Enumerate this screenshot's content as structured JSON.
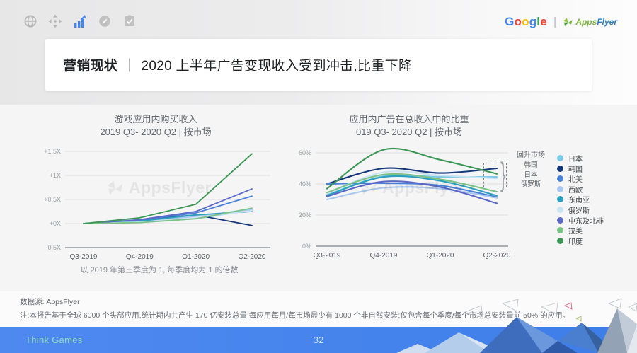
{
  "toolbar": {
    "icons": [
      {
        "name": "globe-icon",
        "active": false
      },
      {
        "name": "move-icon",
        "active": false
      },
      {
        "name": "bar-chart-icon",
        "active": true
      },
      {
        "name": "compass-icon",
        "active": false
      },
      {
        "name": "tasks-icon",
        "active": false
      }
    ],
    "accent_color": "#4285f4",
    "inactive_color": "#b7b7b7"
  },
  "logos": {
    "google": "Google",
    "google_colors": [
      "#4285F4",
      "#EA4335",
      "#FBBC05",
      "#4285F4",
      "#34A853",
      "#EA4335"
    ],
    "divider": "|",
    "appsflyer_apps": "Apps",
    "appsflyer_flyer": "Flyer"
  },
  "header": {
    "title_prefix": "营销现状",
    "title_separator": "｜",
    "title_rest": "2020 上半年广告变现收入受到冲击,比重下降"
  },
  "watermark": "AppsFlyer",
  "chart_data": [
    {
      "id": "iap-revenue-chart",
      "type": "line",
      "title": "游戏应用内购买收入",
      "subtitle": "2019 Q3- 2020 Q2 | 按市场",
      "categories": [
        "Q3-2019",
        "Q4-2019",
        "Q1-2020",
        "Q2-2020"
      ],
      "yticks": [
        {
          "v": 1.5,
          "label": "+1.5X"
        },
        {
          "v": 1.0,
          "label": "+1X"
        },
        {
          "v": 0.5,
          "label": "+0.5X"
        },
        {
          "v": 0.0,
          "label": "+0X"
        },
        {
          "v": -0.5,
          "label": "-0.5X"
        }
      ],
      "ylim": [
        -0.5,
        1.5
      ],
      "smooth": false,
      "grid": true,
      "series": [
        {
          "name": "日本",
          "color": "#7ec9e5",
          "values": [
            0,
            0.02,
            0.1,
            0.28
          ]
        },
        {
          "name": "韩国",
          "color": "#16387c",
          "values": [
            0,
            0.07,
            0.18,
            -0.04
          ]
        },
        {
          "name": "北美",
          "color": "#4a81d8",
          "values": [
            0,
            0.07,
            0.22,
            0.57
          ]
        },
        {
          "name": "西欧",
          "color": "#a9c8ef",
          "values": [
            0,
            0.04,
            0.15,
            0.3
          ]
        },
        {
          "name": "东南亚",
          "color": "#2ba0bd",
          "values": [
            0,
            0.05,
            0.18,
            0.25
          ]
        },
        {
          "name": "俄罗斯",
          "color": "#c9e3f3",
          "values": [
            0,
            0.03,
            0.12,
            0.27
          ]
        },
        {
          "name": "中东及北非",
          "color": "#5b68c7",
          "values": [
            0,
            0.08,
            0.25,
            0.72
          ]
        },
        {
          "name": "拉美",
          "color": "#7cc284",
          "values": [
            0,
            0.02,
            0.1,
            0.32
          ]
        },
        {
          "name": "印度",
          "color": "#3a9653",
          "values": [
            0,
            0.12,
            0.4,
            1.45
          ]
        }
      ],
      "footnote": "以 2019 年第三季度为 1, 每季度均为 1 的倍数"
    },
    {
      "id": "ad-share-chart",
      "type": "line",
      "title": "应用内广告在总收入中的比重",
      "subtitle": "019 Q3- 2020 Q2 | 按市场",
      "categories": [
        "Q3-2019",
        "Q4-2019",
        "Q1-2020",
        "Q2-2020"
      ],
      "yticks": [
        {
          "v": 60,
          "label": "60%"
        },
        {
          "v": 40,
          "label": "40%"
        },
        {
          "v": 20,
          "label": "20%"
        },
        {
          "v": 0,
          "label": "0%"
        }
      ],
      "ylim": [
        0,
        60
      ],
      "smooth": true,
      "grid": true,
      "series": [
        {
          "name": "日本",
          "color": "#7ec9e5",
          "values": [
            33,
            45,
            44.5,
            44.5
          ]
        },
        {
          "name": "韩国",
          "color": "#16387c",
          "values": [
            40,
            50,
            47,
            50
          ]
        },
        {
          "name": "北美",
          "color": "#4a81d8",
          "values": [
            40,
            40.5,
            39,
            31.5
          ]
        },
        {
          "name": "西欧",
          "color": "#a9c8ef",
          "values": [
            30,
            37.5,
            37,
            31
          ]
        },
        {
          "name": "东南亚",
          "color": "#2ba0bd",
          "values": [
            32.5,
            44.5,
            42,
            32.5
          ]
        },
        {
          "name": "俄罗斯",
          "color": "#c9e3f3",
          "values": [
            34,
            47.5,
            45.5,
            43.5
          ]
        },
        {
          "name": "中东及北非",
          "color": "#5b68c7",
          "values": [
            32,
            41.5,
            38,
            27.5
          ]
        },
        {
          "name": "拉美",
          "color": "#7cc284",
          "values": [
            34.5,
            46,
            43,
            35
          ]
        },
        {
          "name": "印度",
          "color": "#3a9653",
          "values": [
            37,
            62,
            55.5,
            46.5
          ]
        }
      ],
      "callout": {
        "title": "回升市场",
        "items": [
          "韩国",
          "日本",
          "俄罗斯"
        ],
        "brace": "}"
      }
    }
  ],
  "notes": {
    "source": "数据源: AppsFlyer",
    "detail": "注:本报告基于全球 6000 个头部应用,统计期内共产生 170 亿安装总量;每应用每月/每市场最少有 1000 个非自然安装;仅包含每个季度/每个市场总安装量前 50% 的应用。"
  },
  "footer": {
    "brand": "Think Games",
    "page": "32"
  }
}
